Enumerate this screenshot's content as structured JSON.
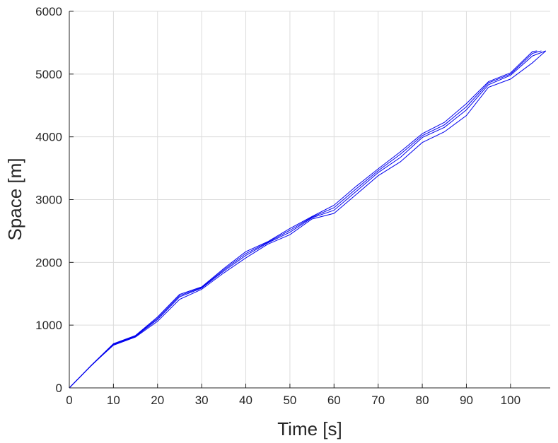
{
  "chart_data": {
    "type": "line",
    "title": "",
    "xlabel": "Time [s]",
    "ylabel": "Space [m]",
    "xlim": [
      0,
      109
    ],
    "ylim": [
      0,
      6000
    ],
    "xticks": [
      0,
      10,
      20,
      30,
      40,
      50,
      60,
      70,
      80,
      90,
      100
    ],
    "yticks": [
      0,
      1000,
      2000,
      3000,
      4000,
      5000,
      6000
    ],
    "grid": true,
    "legend": "none",
    "line_color": "#0000ee",
    "series": [
      {
        "x": [
          0,
          5,
          10,
          15,
          20,
          25,
          30,
          35,
          40,
          45,
          50,
          55,
          60,
          65,
          70,
          75,
          80,
          85,
          90,
          95,
          100,
          105,
          108
        ],
        "y": [
          0,
          360,
          680,
          810,
          1060,
          1410,
          1570,
          1830,
          2070,
          2290,
          2440,
          2690,
          2780,
          3080,
          3380,
          3600,
          3910,
          4080,
          4340,
          4790,
          4920,
          5180,
          5370
        ]
      },
      {
        "x": [
          0,
          5,
          10,
          15,
          20,
          25,
          30,
          35,
          40,
          45,
          50,
          55,
          60,
          65,
          70,
          75,
          80,
          85,
          90,
          95,
          100,
          105,
          108
        ],
        "y": [
          0,
          355,
          690,
          820,
          1090,
          1450,
          1590,
          1860,
          2110,
          2310,
          2480,
          2710,
          2830,
          3130,
          3430,
          3670,
          3990,
          4150,
          4430,
          4830,
          4980,
          5290,
          5370
        ]
      },
      {
        "x": [
          0,
          5,
          10,
          15,
          20,
          25,
          30,
          35,
          40,
          45,
          50,
          55,
          60,
          65,
          70,
          75,
          80,
          85,
          90,
          95,
          100,
          105,
          107
        ],
        "y": [
          0,
          358,
          698,
          828,
          1110,
          1470,
          1600,
          1880,
          2140,
          2320,
          2510,
          2720,
          2870,
          3170,
          3460,
          3720,
          4020,
          4190,
          4480,
          4860,
          5000,
          5330,
          5370
        ]
      },
      {
        "x": [
          0,
          5,
          10,
          15,
          20,
          25,
          30,
          35,
          40,
          45,
          50,
          55,
          60,
          65,
          70,
          75,
          80,
          85,
          90,
          95,
          100,
          105,
          106
        ],
        "y": [
          0,
          362,
          705,
          835,
          1130,
          1490,
          1610,
          1900,
          2170,
          2330,
          2540,
          2730,
          2910,
          3210,
          3490,
          3760,
          4050,
          4230,
          4530,
          4880,
          5020,
          5360,
          5370
        ]
      }
    ]
  }
}
